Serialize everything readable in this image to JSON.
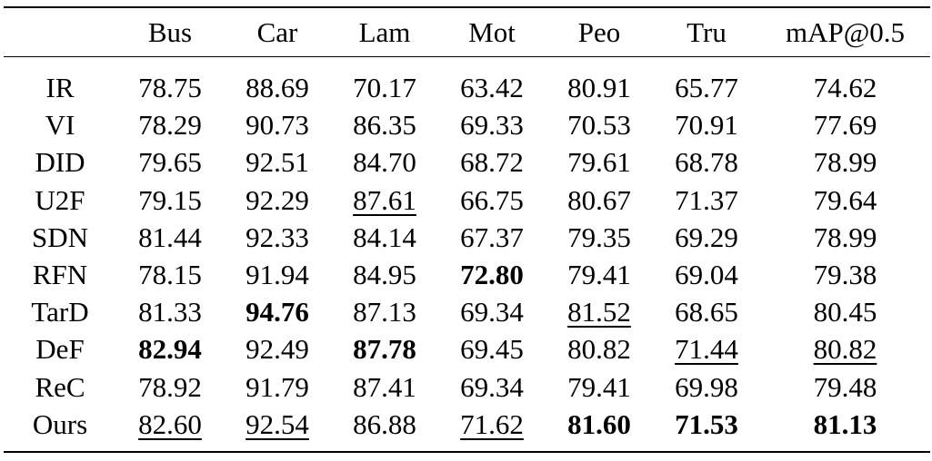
{
  "table": {
    "columns": [
      "Bus",
      "Car",
      "Lam",
      "Mot",
      "Peo",
      "Tru",
      "mAP@0.5"
    ],
    "rows": [
      {
        "label": "IR",
        "values": [
          "78.75",
          "88.69",
          "70.17",
          "63.42",
          "80.91",
          "65.77",
          "74.62"
        ]
      },
      {
        "label": "VI",
        "values": [
          "78.29",
          "90.73",
          "86.35",
          "69.33",
          "70.53",
          "70.91",
          "77.69"
        ]
      },
      {
        "label": "DID",
        "values": [
          "79.65",
          "92.51",
          "84.70",
          "68.72",
          "79.61",
          "68.78",
          "78.99"
        ]
      },
      {
        "label": "U2F",
        "values": [
          "79.15",
          "92.29",
          "87.61",
          "66.75",
          "80.67",
          "71.37",
          "79.64"
        ]
      },
      {
        "label": "SDN",
        "values": [
          "81.44",
          "92.33",
          "84.14",
          "67.37",
          "79.35",
          "69.29",
          "78.99"
        ]
      },
      {
        "label": "RFN",
        "values": [
          "78.15",
          "91.94",
          "84.95",
          "72.80",
          "79.41",
          "69.04",
          "79.38"
        ]
      },
      {
        "label": "TarD",
        "values": [
          "81.33",
          "94.76",
          "87.13",
          "69.34",
          "81.52",
          "68.65",
          "80.45"
        ]
      },
      {
        "label": "DeF",
        "values": [
          "82.94",
          "92.49",
          "87.78",
          "69.45",
          "80.82",
          "71.44",
          "80.82"
        ]
      },
      {
        "label": "ReC",
        "values": [
          "78.92",
          "91.79",
          "87.41",
          "69.34",
          "79.41",
          "69.98",
          "79.48"
        ]
      },
      {
        "label": "Ours",
        "values": [
          "82.60",
          "92.54",
          "86.88",
          "71.62",
          "81.60",
          "71.53",
          "81.13"
        ]
      }
    ]
  }
}
